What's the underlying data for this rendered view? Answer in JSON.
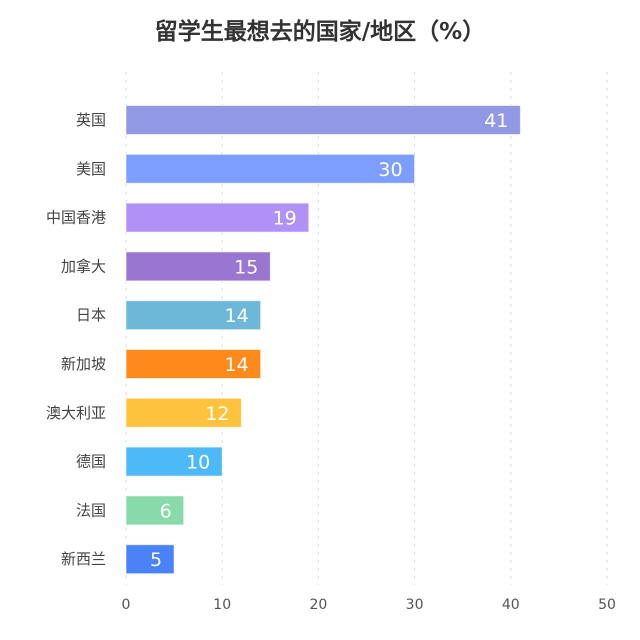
{
  "chart_data": {
    "type": "bar",
    "orientation": "horizontal",
    "title": "留学生最想去的国家/地区（%）",
    "categories": [
      "英国",
      "美国",
      "中国香港",
      "加拿大",
      "日本",
      "新加坡",
      "澳大利亚",
      "德国",
      "法国",
      "新西兰"
    ],
    "values": [
      41,
      30,
      19,
      15,
      14,
      14,
      12,
      10,
      6,
      5
    ],
    "colors": [
      "#9199e6",
      "#7d9eff",
      "#b091f5",
      "#9876d2",
      "#6db8d8",
      "#ff8a1c",
      "#ffc23c",
      "#4db9f7",
      "#88dba8",
      "#4a82f7"
    ],
    "xlim": [
      0,
      50
    ],
    "xticks": [
      0,
      10,
      20,
      30,
      40,
      50
    ],
    "xlabel": "",
    "ylabel": "",
    "grid": "vertical dashed",
    "data_labels": "inside-end"
  }
}
